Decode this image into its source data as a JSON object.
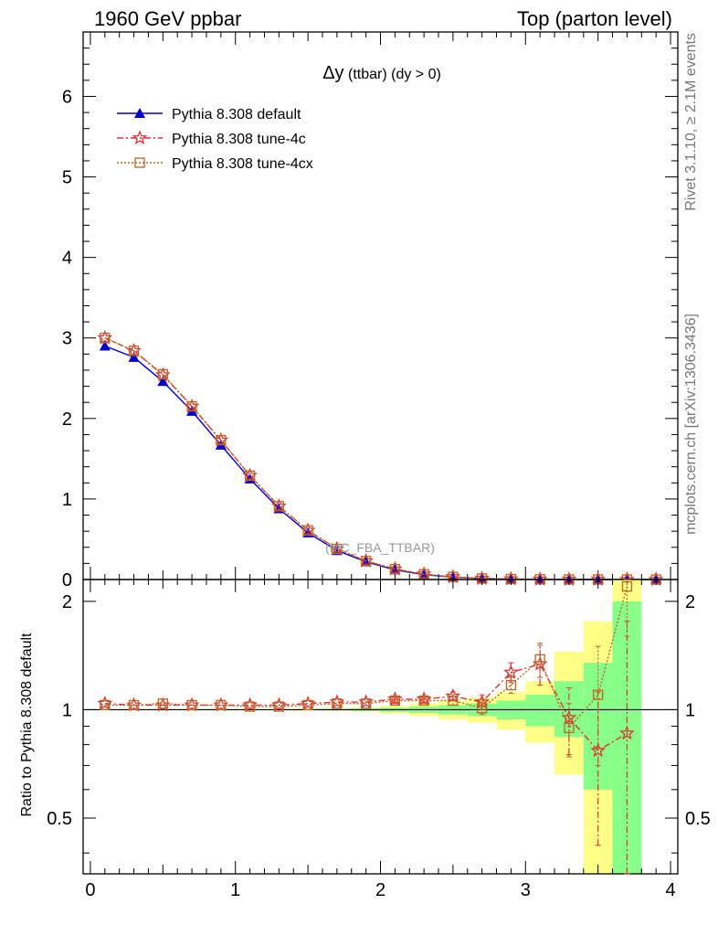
{
  "header": {
    "left_title": "1960 GeV ppbar",
    "right_title": "Top (parton level)"
  },
  "side_labels": {
    "rivet": "Rivet 3.1.10, ≥ 2.1M events",
    "mcplots": "mcplots.cern.ch [arXiv:1306.3436]"
  },
  "main_panel": {
    "title_symbol": "Δy",
    "title_rest": " (ttbar) (dy > 0)",
    "analysis_label": "(MC_FBA_TTBAR)",
    "yticks": [
      "0",
      "1",
      "2",
      "3",
      "4",
      "5",
      "6"
    ]
  },
  "ratio_panel": {
    "ylabel": "Ratio to Pythia 8.308 default",
    "yticks_left": [
      "0.5",
      "1",
      "2"
    ],
    "yticks_right": [
      "0.5",
      "1",
      "2"
    ]
  },
  "xaxis": {
    "ticks": [
      "0",
      "1",
      "2",
      "3",
      "4"
    ]
  },
  "legend": [
    {
      "label": "Pythia 8.308 default",
      "color": "#0000cc",
      "marker": "triangle",
      "dash": "solid"
    },
    {
      "label": "Pythia 8.308 tune-4c",
      "color": "#dd3333",
      "marker": "star",
      "dash": "dashdot"
    },
    {
      "label": "Pythia 8.308 tune-4cx",
      "color": "#bb6622",
      "marker": "open-square",
      "dash": "dotted"
    }
  ],
  "chart_data": {
    "type": "line",
    "xlim": [
      -0.05,
      4.05
    ],
    "ylim_main": [
      0,
      6.8
    ],
    "ylim_ratio": [
      0.35,
      2.3
    ],
    "ratio_scale": "log",
    "x": [
      0.1,
      0.3,
      0.5,
      0.7,
      0.9,
      1.1,
      1.3,
      1.5,
      1.7,
      1.9,
      2.1,
      2.3,
      2.5,
      2.7,
      2.9,
      3.1,
      3.3,
      3.5,
      3.7,
      3.9
    ],
    "series": [
      {
        "name": "Pythia 8.308 default",
        "values": [
          2.9,
          2.76,
          2.46,
          2.09,
          1.67,
          1.25,
          0.88,
          0.58,
          0.36,
          0.22,
          0.12,
          0.06,
          0.03,
          0.012,
          0.005,
          0.002,
          0.001,
          0.0005,
          0.0002,
          0.0
        ]
      },
      {
        "name": "Pythia 8.308 tune-4c",
        "values": [
          3.0,
          2.84,
          2.54,
          2.15,
          1.73,
          1.29,
          0.91,
          0.61,
          0.38,
          0.23,
          0.13,
          0.065,
          0.033,
          0.013,
          0.006,
          0.0027,
          0.001,
          0.0004,
          0.0002,
          0.0
        ]
      },
      {
        "name": "Pythia 8.308 tune-4cx",
        "values": [
          3.0,
          2.84,
          2.55,
          2.15,
          1.73,
          1.29,
          0.91,
          0.61,
          0.38,
          0.23,
          0.13,
          0.065,
          0.032,
          0.012,
          0.006,
          0.0028,
          0.0009,
          0.0005,
          0.0004,
          0.0
        ]
      }
    ],
    "ratio_series": [
      {
        "name": "Pythia 8.308 tune-4c",
        "x": [
          0.1,
          0.3,
          0.5,
          0.7,
          0.9,
          1.1,
          1.3,
          1.5,
          1.7,
          1.9,
          2.1,
          2.3,
          2.5,
          2.7,
          2.9,
          3.1,
          3.3,
          3.5,
          3.7
        ],
        "values": [
          1.04,
          1.03,
          1.03,
          1.03,
          1.03,
          1.03,
          1.03,
          1.04,
          1.05,
          1.05,
          1.07,
          1.07,
          1.09,
          1.05,
          1.27,
          1.34,
          0.95,
          0.77,
          0.86
        ],
        "err": [
          0.01,
          0.01,
          0.01,
          0.01,
          0.01,
          0.01,
          0.01,
          0.01,
          0.01,
          0.01,
          0.02,
          0.02,
          0.03,
          0.05,
          0.08,
          0.17,
          0.2,
          0.35,
          0.9
        ]
      },
      {
        "name": "Pythia 8.308 tune-4cx",
        "x": [
          0.1,
          0.3,
          0.5,
          0.7,
          0.9,
          1.1,
          1.3,
          1.5,
          1.7,
          1.9,
          2.1,
          2.3,
          2.5,
          2.7,
          2.9,
          3.1,
          3.3,
          3.5,
          3.7
        ],
        "values": [
          1.03,
          1.03,
          1.04,
          1.03,
          1.03,
          1.02,
          1.02,
          1.03,
          1.04,
          1.04,
          1.06,
          1.06,
          1.06,
          1.01,
          1.17,
          1.38,
          0.89,
          1.1,
          2.2
        ],
        "err": [
          0.01,
          0.01,
          0.01,
          0.01,
          0.01,
          0.01,
          0.01,
          0.01,
          0.01,
          0.01,
          0.02,
          0.02,
          0.03,
          0.04,
          0.06,
          0.15,
          0.15,
          0.4,
          0.6
        ]
      }
    ],
    "ratio_bands": {
      "edges": [
        0.2,
        0.4,
        0.6,
        0.8,
        1.0,
        1.2,
        1.4,
        1.6,
        1.8,
        2.0,
        2.2,
        2.4,
        2.6,
        2.8,
        3.0,
        3.2,
        3.4,
        3.6,
        3.8
      ],
      "yellow": [
        [
          0.995,
          1.005
        ],
        [
          0.995,
          1.005
        ],
        [
          0.995,
          1.005
        ],
        [
          0.995,
          1.005
        ],
        [
          0.995,
          1.005
        ],
        [
          0.994,
          1.006
        ],
        [
          0.993,
          1.007
        ],
        [
          0.99,
          1.01
        ],
        [
          0.985,
          1.015
        ],
        [
          0.975,
          1.025
        ],
        [
          0.96,
          1.04
        ],
        [
          0.94,
          1.06
        ],
        [
          0.92,
          1.08
        ],
        [
          0.88,
          1.12
        ],
        [
          0.81,
          1.2
        ],
        [
          0.66,
          1.45
        ],
        [
          0.35,
          1.76
        ],
        [
          0.35,
          2.3
        ]
      ],
      "green": [
        [
          0.997,
          1.003
        ],
        [
          0.997,
          1.003
        ],
        [
          0.997,
          1.003
        ],
        [
          0.997,
          1.003
        ],
        [
          0.997,
          1.003
        ],
        [
          0.997,
          1.003
        ],
        [
          0.996,
          1.004
        ],
        [
          0.995,
          1.005
        ],
        [
          0.992,
          1.008
        ],
        [
          0.987,
          1.013
        ],
        [
          0.98,
          1.02
        ],
        [
          0.97,
          1.03
        ],
        [
          0.96,
          1.04
        ],
        [
          0.94,
          1.06
        ],
        [
          0.9,
          1.1
        ],
        [
          0.84,
          1.2
        ],
        [
          0.6,
          1.35
        ],
        [
          0.35,
          2.0
        ]
      ]
    }
  }
}
